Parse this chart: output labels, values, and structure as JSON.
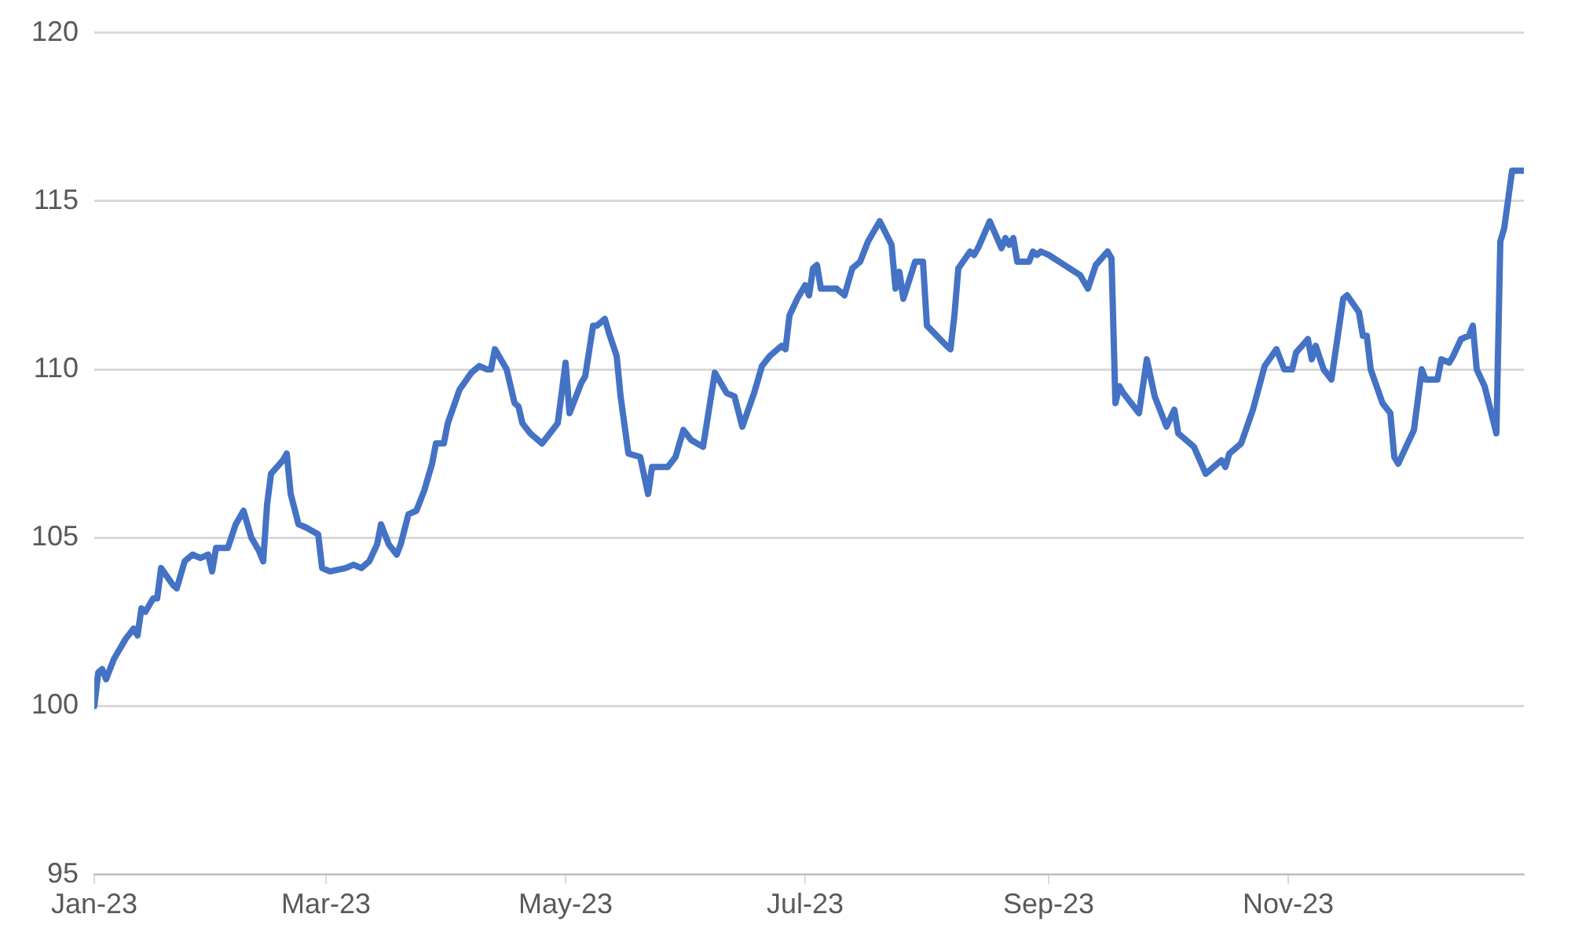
{
  "chart_data": {
    "type": "line",
    "color": "#4472c4",
    "marker": "none",
    "line_style": "solid",
    "grid": "y",
    "legend": false,
    "xlim": [
      "2023-01-01",
      "2023-12-31"
    ],
    "xticks": [
      {
        "value": "2023-01-01",
        "label": "Jan-23"
      },
      {
        "value": "2023-03-01",
        "label": "Mar-23"
      },
      {
        "value": "2023-05-01",
        "label": "May-23"
      },
      {
        "value": "2023-07-01",
        "label": "Jul-23"
      },
      {
        "value": "2023-09-01",
        "label": "Sep-23"
      },
      {
        "value": "2023-11-01",
        "label": "Nov-23"
      }
    ],
    "ylim": [
      95,
      120
    ],
    "yticks": [
      95,
      100,
      105,
      110,
      115,
      120
    ],
    "x": [
      "2023-01-01",
      "2023-01-02",
      "2023-01-03",
      "2023-01-04",
      "2023-01-06",
      "2023-01-09",
      "2023-01-11",
      "2023-01-12",
      "2023-01-13",
      "2023-01-14",
      "2023-01-16",
      "2023-01-17",
      "2023-01-18",
      "2023-01-21",
      "2023-01-22",
      "2023-01-24",
      "2023-01-26",
      "2023-01-28",
      "2023-01-30",
      "2023-01-31",
      "2023-02-01",
      "2023-02-04",
      "2023-02-06",
      "2023-02-08",
      "2023-02-10",
      "2023-02-12",
      "2023-02-13",
      "2023-02-14",
      "2023-02-15",
      "2023-02-18",
      "2023-02-19",
      "2023-02-20",
      "2023-02-22",
      "2023-02-24",
      "2023-02-27",
      "2023-02-28",
      "2023-03-02",
      "2023-03-06",
      "2023-03-08",
      "2023-03-10",
      "2023-03-12",
      "2023-03-14",
      "2023-03-15",
      "2023-03-17",
      "2023-03-19",
      "2023-03-20",
      "2023-03-22",
      "2023-03-24",
      "2023-03-26",
      "2023-03-28",
      "2023-03-29",
      "2023-03-31",
      "2023-04-01",
      "2023-04-04",
      "2023-04-07",
      "2023-04-09",
      "2023-04-11",
      "2023-04-12",
      "2023-04-13",
      "2023-04-16",
      "2023-04-18",
      "2023-04-19",
      "2023-04-20",
      "2023-04-22",
      "2023-04-25",
      "2023-04-27",
      "2023-04-29",
      "2023-05-01",
      "2023-05-02",
      "2023-05-05",
      "2023-05-06",
      "2023-05-08",
      "2023-05-09",
      "2023-05-11",
      "2023-05-12",
      "2023-05-14",
      "2023-05-15",
      "2023-05-17",
      "2023-05-20",
      "2023-05-22",
      "2023-05-23",
      "2023-05-27",
      "2023-05-29",
      "2023-05-31",
      "2023-06-02",
      "2023-06-05",
      "2023-06-08",
      "2023-06-11",
      "2023-06-13",
      "2023-06-15",
      "2023-06-18",
      "2023-06-20",
      "2023-06-22",
      "2023-06-25",
      "2023-06-26",
      "2023-06-27",
      "2023-06-29",
      "2023-07-01",
      "2023-07-02",
      "2023-07-03",
      "2023-07-04",
      "2023-07-05",
      "2023-07-09",
      "2023-07-11",
      "2023-07-13",
      "2023-07-15",
      "2023-07-17",
      "2023-07-20",
      "2023-07-23",
      "2023-07-24",
      "2023-07-25",
      "2023-07-26",
      "2023-07-29",
      "2023-07-31",
      "2023-08-01",
      "2023-08-06",
      "2023-08-07",
      "2023-08-08",
      "2023-08-09",
      "2023-08-12",
      "2023-08-13",
      "2023-08-14",
      "2023-08-17",
      "2023-08-20",
      "2023-08-21",
      "2023-08-22",
      "2023-08-23",
      "2023-08-24",
      "2023-08-27",
      "2023-08-28",
      "2023-08-29",
      "2023-08-30",
      "2023-09-01",
      "2023-09-09",
      "2023-09-11",
      "2023-09-13",
      "2023-09-16",
      "2023-09-17",
      "2023-09-18",
      "2023-09-19",
      "2023-09-20",
      "2023-09-24",
      "2023-09-26",
      "2023-09-28",
      "2023-10-01",
      "2023-10-03",
      "2023-10-04",
      "2023-10-06",
      "2023-10-08",
      "2023-10-11",
      "2023-10-15",
      "2023-10-16",
      "2023-10-17",
      "2023-10-20",
      "2023-10-23",
      "2023-10-26",
      "2023-10-29",
      "2023-10-31",
      "2023-11-02",
      "2023-11-03",
      "2023-11-06",
      "2023-11-07",
      "2023-11-08",
      "2023-11-10",
      "2023-11-12",
      "2023-11-15",
      "2023-11-16",
      "2023-11-19",
      "2023-11-20",
      "2023-11-21",
      "2023-11-22",
      "2023-11-25",
      "2023-11-27",
      "2023-11-28",
      "2023-11-29",
      "2023-12-03",
      "2023-12-05",
      "2023-12-06",
      "2023-12-09",
      "2023-12-10",
      "2023-12-12",
      "2023-12-13",
      "2023-12-15",
      "2023-12-17",
      "2023-12-18",
      "2023-12-19",
      "2023-12-21",
      "2023-12-24",
      "2023-12-25",
      "2023-12-26",
      "2023-12-28",
      "2023-12-31"
    ],
    "values": [
      100.0,
      101.0,
      101.1,
      100.8,
      101.4,
      102.0,
      102.3,
      102.1,
      102.9,
      102.8,
      103.2,
      103.2,
      104.1,
      103.6,
      103.5,
      104.3,
      104.5,
      104.4,
      104.5,
      104.0,
      104.7,
      104.7,
      105.4,
      105.8,
      105.0,
      104.6,
      104.3,
      106.0,
      106.9,
      107.3,
      107.5,
      106.3,
      105.4,
      105.3,
      105.1,
      104.1,
      104.0,
      104.1,
      104.2,
      104.1,
      104.3,
      104.8,
      105.4,
      104.8,
      104.5,
      104.8,
      105.7,
      105.8,
      106.4,
      107.2,
      107.8,
      107.8,
      108.4,
      109.4,
      109.9,
      110.1,
      110.0,
      110.0,
      110.6,
      110.0,
      109.0,
      108.9,
      108.4,
      108.1,
      107.8,
      108.1,
      108.4,
      110.2,
      108.7,
      109.6,
      109.8,
      111.3,
      111.3,
      111.5,
      111.1,
      110.4,
      109.2,
      107.5,
      107.4,
      106.3,
      107.1,
      107.1,
      107.4,
      108.2,
      107.9,
      107.7,
      109.9,
      109.3,
      109.2,
      108.3,
      109.3,
      110.1,
      110.4,
      110.7,
      110.6,
      111.6,
      112.1,
      112.5,
      112.2,
      113.0,
      113.1,
      112.4,
      112.4,
      112.2,
      113.0,
      113.2,
      113.8,
      114.4,
      113.7,
      112.4,
      112.9,
      112.1,
      113.2,
      113.2,
      111.3,
      110.7,
      110.6,
      111.6,
      113.0,
      113.5,
      113.4,
      113.6,
      114.4,
      113.6,
      113.9,
      113.7,
      113.9,
      113.2,
      113.2,
      113.5,
      113.4,
      113.5,
      113.4,
      112.8,
      112.4,
      113.1,
      113.5,
      113.3,
      109.0,
      109.5,
      109.3,
      108.7,
      110.3,
      109.2,
      108.3,
      108.8,
      108.1,
      107.9,
      107.7,
      106.9,
      107.3,
      107.1,
      107.5,
      107.8,
      108.8,
      110.1,
      110.6,
      110.0,
      110.0,
      110.5,
      110.9,
      110.3,
      110.7,
      110.0,
      109.7,
      112.1,
      112.2,
      111.7,
      111.0,
      111.0,
      110.0,
      109.0,
      108.7,
      107.4,
      107.2,
      108.2,
      110.0,
      109.7,
      109.7,
      110.3,
      110.2,
      110.4,
      110.9,
      111.0,
      111.3,
      110.0,
      109.5,
      108.1,
      113.8,
      114.2,
      115.9,
      115.9
    ]
  }
}
